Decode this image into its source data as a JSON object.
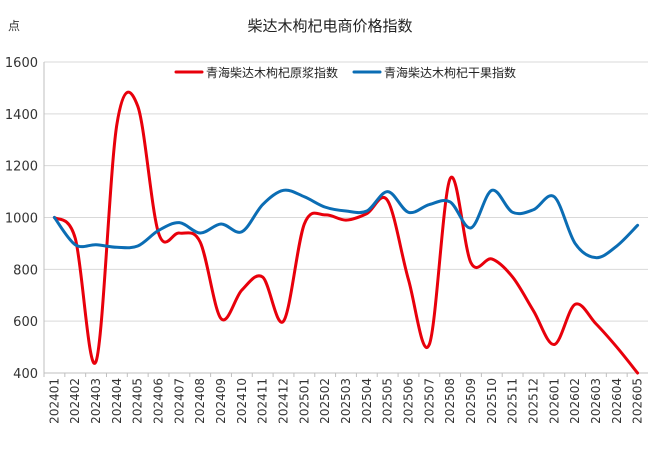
{
  "chart_data": {
    "type": "line",
    "title": "柴达木枸杞电商价格指数",
    "ylabel": "点",
    "xlabel": "",
    "ylim": [
      400,
      1600
    ],
    "yticks": [
      400,
      600,
      800,
      1000,
      1200,
      1400,
      1600
    ],
    "grid": true,
    "legend_position": "top-center",
    "x": [
      "202401",
      "202402",
      "202403",
      "202404",
      "202405",
      "202406",
      "202407",
      "202408",
      "202409",
      "202410",
      "202411",
      "202412",
      "202501",
      "202502",
      "202503",
      "202504",
      "202505",
      "202506",
      "202507",
      "202508",
      "202509",
      "202510",
      "202511",
      "202512",
      "202601",
      "202602",
      "202603",
      "202604",
      "202605"
    ],
    "series": [
      {
        "name": "青海柴达木枸杞原浆指数",
        "color": "#e8000b",
        "values": [
          1000,
          920,
          445,
          1360,
          1430,
          940,
          940,
          905,
          610,
          720,
          770,
          600,
          975,
          1010,
          990,
          1015,
          1065,
          760,
          510,
          1150,
          825,
          840,
          770,
          640,
          510,
          665,
          590,
          500,
          400
        ]
      },
      {
        "name": "青海柴达木枸杞干果指数",
        "color": "#0b6db4",
        "values": [
          1000,
          895,
          895,
          885,
          890,
          950,
          980,
          940,
          975,
          945,
          1050,
          1105,
          1080,
          1040,
          1025,
          1025,
          1100,
          1020,
          1050,
          1060,
          960,
          1105,
          1020,
          1030,
          1080,
          900,
          845,
          890,
          970
        ]
      }
    ]
  }
}
